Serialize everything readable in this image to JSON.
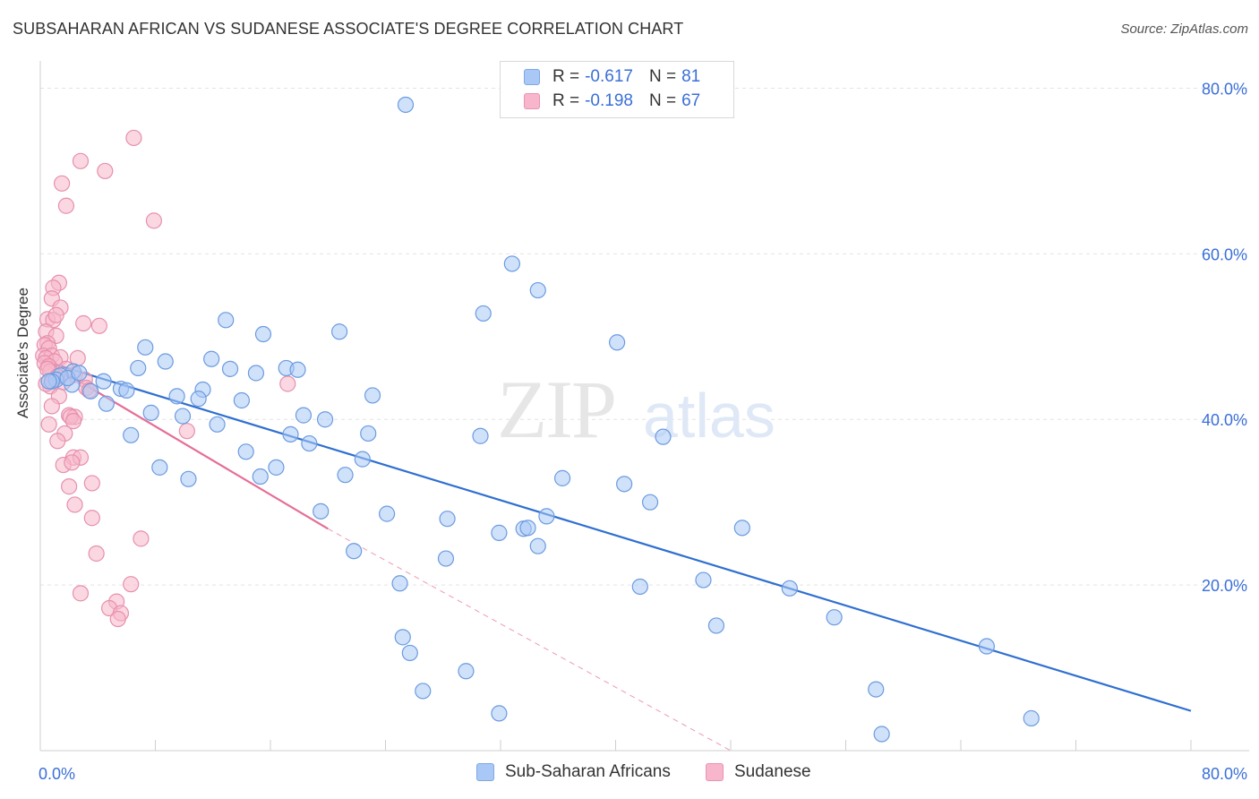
{
  "title": "SUBSAHARAN AFRICAN VS SUDANESE ASSOCIATE'S DEGREE CORRELATION CHART",
  "source": "Source: ZipAtlas.com",
  "watermark": {
    "zip": "ZIP",
    "atlas": "atlas"
  },
  "legend_top": {
    "rows": [
      {
        "r_label": "R = ",
        "r_value": "-0.617",
        "n_label": "N = ",
        "n_value": "81",
        "color": "#a9c8f5"
      },
      {
        "r_label": "R = ",
        "r_value": "-0.198",
        "n_label": "N = ",
        "n_value": "67",
        "color": "#f7b6cb"
      }
    ]
  },
  "legend_bottom": [
    {
      "label": "Sub-Saharan Africans",
      "color": "#a9c8f5"
    },
    {
      "label": "Sudanese",
      "color": "#f7b6cb"
    }
  ],
  "chart_data": {
    "type": "scatter",
    "title": "SUBSAHARAN AFRICAN VS SUDANESE ASSOCIATE'S DEGREE CORRELATION CHART",
    "xlabel": "",
    "ylabel": "Associate's Degree",
    "xlim": [
      0,
      80
    ],
    "ylim": [
      0,
      82
    ],
    "x_tick_labels": [
      "0.0%",
      "80.0%"
    ],
    "y_ticks": [
      20,
      40,
      60,
      80
    ],
    "y_tick_labels": [
      "20.0%",
      "40.0%",
      "60.0%",
      "80.0%"
    ],
    "grid": true,
    "legend_position": "top-center",
    "series": [
      {
        "name": "Sub-Saharan Africans",
        "color": "#a9c8f5",
        "stroke": "#6b9be0",
        "trend_color": "#2f6fd0",
        "trend": {
          "x0": 0,
          "y0": 47.2,
          "x1": 80,
          "y1": 4.8,
          "dashed_from": null
        },
        "points": [
          [
            25.4,
            78.0
          ],
          [
            32.8,
            58.8
          ],
          [
            34.6,
            55.6
          ],
          [
            30.8,
            52.8
          ],
          [
            12.9,
            52.0
          ],
          [
            20.8,
            50.6
          ],
          [
            15.5,
            50.3
          ],
          [
            40.1,
            49.3
          ],
          [
            7.3,
            48.7
          ],
          [
            8.7,
            47.0
          ],
          [
            11.9,
            47.3
          ],
          [
            6.8,
            46.2
          ],
          [
            13.2,
            46.1
          ],
          [
            15.0,
            45.6
          ],
          [
            17.1,
            46.2
          ],
          [
            17.9,
            46.0
          ],
          [
            2.3,
            45.8
          ],
          [
            1.4,
            45.3
          ],
          [
            1.1,
            44.8
          ],
          [
            4.4,
            44.6
          ],
          [
            0.8,
            44.6
          ],
          [
            2.2,
            44.2
          ],
          [
            3.5,
            43.4
          ],
          [
            5.6,
            43.7
          ],
          [
            6.0,
            43.5
          ],
          [
            11.3,
            43.6
          ],
          [
            23.1,
            42.9
          ],
          [
            9.5,
            42.8
          ],
          [
            11.0,
            42.5
          ],
          [
            14.0,
            42.3
          ],
          [
            4.6,
            41.9
          ],
          [
            7.7,
            40.8
          ],
          [
            9.9,
            40.4
          ],
          [
            18.3,
            40.5
          ],
          [
            19.8,
            40.0
          ],
          [
            12.3,
            39.4
          ],
          [
            17.4,
            38.2
          ],
          [
            22.8,
            38.3
          ],
          [
            6.3,
            38.1
          ],
          [
            30.6,
            38.0
          ],
          [
            43.3,
            37.9
          ],
          [
            18.7,
            37.1
          ],
          [
            14.3,
            36.1
          ],
          [
            22.4,
            35.2
          ],
          [
            8.3,
            34.2
          ],
          [
            16.4,
            34.2
          ],
          [
            21.2,
            33.3
          ],
          [
            15.3,
            33.1
          ],
          [
            10.3,
            32.8
          ],
          [
            36.3,
            32.9
          ],
          [
            40.6,
            32.2
          ],
          [
            42.4,
            30.0
          ],
          [
            19.5,
            28.9
          ],
          [
            24.1,
            28.6
          ],
          [
            35.2,
            28.3
          ],
          [
            28.3,
            28.0
          ],
          [
            33.6,
            26.8
          ],
          [
            33.9,
            26.9
          ],
          [
            48.8,
            26.9
          ],
          [
            31.9,
            26.3
          ],
          [
            34.6,
            24.7
          ],
          [
            21.8,
            24.1
          ],
          [
            28.2,
            23.2
          ],
          [
            25.0,
            20.2
          ],
          [
            41.7,
            19.8
          ],
          [
            46.1,
            20.6
          ],
          [
            52.1,
            19.6
          ],
          [
            47.0,
            15.1
          ],
          [
            55.2,
            16.1
          ],
          [
            25.2,
            13.7
          ],
          [
            25.7,
            11.8
          ],
          [
            65.8,
            12.6
          ],
          [
            29.6,
            9.6
          ],
          [
            26.6,
            7.2
          ],
          [
            58.1,
            7.4
          ],
          [
            31.9,
            4.5
          ],
          [
            68.9,
            3.9
          ],
          [
            58.5,
            2.0
          ],
          [
            1.9,
            45.0
          ],
          [
            2.7,
            45.6
          ],
          [
            0.6,
            44.6
          ]
        ]
      },
      {
        "name": "Sudanese",
        "color": "#f7b6cb",
        "stroke": "#e690ac",
        "trend_color": "#e56e97",
        "trend": {
          "x0": 0,
          "y0": 47.4,
          "x1": 20.0,
          "y1": 26.8,
          "dashed_to_x": 48.0,
          "dashed_to_y": 0
        },
        "points": [
          [
            6.5,
            74.0
          ],
          [
            2.8,
            71.2
          ],
          [
            4.5,
            70.0
          ],
          [
            1.5,
            68.5
          ],
          [
            1.8,
            65.8
          ],
          [
            7.9,
            64.0
          ],
          [
            1.3,
            56.5
          ],
          [
            0.9,
            55.9
          ],
          [
            0.8,
            54.6
          ],
          [
            1.4,
            53.5
          ],
          [
            0.5,
            52.1
          ],
          [
            0.9,
            52.0
          ],
          [
            1.1,
            52.6
          ],
          [
            3.0,
            51.6
          ],
          [
            4.1,
            51.3
          ],
          [
            0.4,
            50.6
          ],
          [
            1.1,
            50.1
          ],
          [
            0.5,
            49.2
          ],
          [
            0.3,
            49.0
          ],
          [
            0.6,
            48.6
          ],
          [
            0.2,
            47.7
          ],
          [
            0.8,
            47.7
          ],
          [
            0.4,
            47.4
          ],
          [
            1.4,
            47.5
          ],
          [
            2.6,
            47.4
          ],
          [
            1.0,
            47.0
          ],
          [
            0.3,
            46.8
          ],
          [
            0.6,
            46.4
          ],
          [
            1.8,
            46.1
          ],
          [
            0.7,
            45.8
          ],
          [
            2.4,
            45.4
          ],
          [
            0.9,
            44.8
          ],
          [
            1.6,
            44.5
          ],
          [
            3.1,
            44.8
          ],
          [
            0.7,
            44.0
          ],
          [
            3.2,
            43.8
          ],
          [
            1.3,
            42.8
          ],
          [
            0.8,
            41.6
          ],
          [
            2.0,
            40.5
          ],
          [
            2.4,
            40.3
          ],
          [
            2.1,
            40.3
          ],
          [
            2.3,
            39.8
          ],
          [
            0.6,
            39.4
          ],
          [
            10.2,
            38.6
          ],
          [
            1.7,
            38.3
          ],
          [
            1.2,
            37.4
          ],
          [
            2.3,
            35.4
          ],
          [
            2.8,
            35.4
          ],
          [
            1.6,
            34.5
          ],
          [
            2.2,
            34.8
          ],
          [
            17.2,
            44.3
          ],
          [
            3.6,
            32.3
          ],
          [
            2.0,
            31.9
          ],
          [
            2.4,
            29.7
          ],
          [
            3.6,
            28.1
          ],
          [
            7.0,
            25.6
          ],
          [
            3.9,
            23.8
          ],
          [
            6.3,
            20.1
          ],
          [
            2.8,
            19.0
          ],
          [
            5.3,
            18.0
          ],
          [
            4.8,
            17.2
          ],
          [
            5.6,
            16.6
          ],
          [
            5.4,
            15.9
          ],
          [
            0.5,
            46.1
          ],
          [
            1.2,
            45.2
          ],
          [
            0.4,
            44.3
          ],
          [
            3.4,
            43.5
          ]
        ]
      }
    ]
  }
}
